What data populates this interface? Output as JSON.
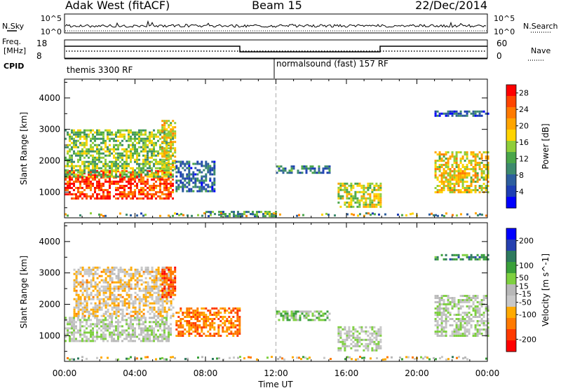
{
  "header": {
    "station": "Adak West (fitACF)",
    "beam": "Beam 15",
    "date": "22/Dec/2014"
  },
  "noise_panel": {
    "left_label": "N.Sky",
    "right_label": "N.Search",
    "ticks": [
      "10^5",
      "10^0"
    ],
    "right_ticks": [
      "10^5",
      "10^0"
    ]
  },
  "freq_panel": {
    "left_label_line1": "Freq.",
    "left_label_line2": "[MHz]",
    "left_ticks": [
      "18",
      "8"
    ],
    "right_label": "Nave",
    "right_ticks": [
      "60",
      "0"
    ]
  },
  "cpid_panel": {
    "label": "CPID",
    "segments": [
      {
        "text": "themis 3300 RF",
        "start_hour": 0
      },
      {
        "text": "normalsound (fast) 157 RF",
        "start_hour": 12
      }
    ]
  },
  "colors": {
    "power_scale": [
      "#0000ff",
      "#1e3fb4",
      "#2d5e9e",
      "#3d8a6e",
      "#4aa64a",
      "#8fce3a",
      "#ffd400",
      "#ffa500",
      "#ff7a00",
      "#ff4500",
      "#ff0000"
    ],
    "velocity_scale": [
      "#ff0000",
      "#ff3a00",
      "#ff7a00",
      "#ffaa00",
      "#c8c8c8",
      "#b8b8b8",
      "#7ed040",
      "#3aa03a",
      "#2e7a5e",
      "#2540b0",
      "#0000ff"
    ],
    "ground_scatter": "#bebebe"
  },
  "chart_data": [
    {
      "type": "heatmap",
      "name": "power",
      "xlabel": "Time UT",
      "ylabel": "Slant Range [km]",
      "x_ticks": [
        "00:00",
        "04:00",
        "08:00",
        "12:00",
        "16:00",
        "20:00",
        "00:00"
      ],
      "xlim_hours": [
        0,
        24
      ],
      "y_ticks": [
        1000,
        2000,
        3000,
        4000
      ],
      "ylim_km": [
        180,
        4600
      ],
      "colorbar": {
        "label": "Power [dB]",
        "ticks": [
          4,
          8,
          12,
          16,
          20,
          24,
          28
        ],
        "range": [
          0,
          30
        ]
      },
      "regions": [
        {
          "t0": 0.0,
          "t1": 6.2,
          "r0": 800,
          "r1": 1700,
          "value": 26
        },
        {
          "t0": 0.0,
          "t1": 6.2,
          "r0": 1500,
          "r1": 3000,
          "value": 14
        },
        {
          "t0": 5.5,
          "t1": 6.3,
          "r0": 1700,
          "r1": 3300,
          "value": 18
        },
        {
          "t0": 6.3,
          "t1": 8.5,
          "r0": 1000,
          "r1": 2000,
          "value": 7
        },
        {
          "t0": 8.0,
          "t1": 12.0,
          "r0": 200,
          "r1": 400,
          "value": 10
        },
        {
          "t0": 12.0,
          "t1": 15.0,
          "r0": 1600,
          "r1": 1850,
          "value": 9
        },
        {
          "t0": 15.5,
          "t1": 18.0,
          "r0": 500,
          "r1": 1300,
          "value": 16
        },
        {
          "t0": 21.0,
          "t1": 24.0,
          "r0": 1000,
          "r1": 2300,
          "value": 18
        },
        {
          "t0": 21.0,
          "t1": 24.0,
          "r0": 3400,
          "r1": 3600,
          "value": 6
        }
      ]
    },
    {
      "type": "heatmap",
      "name": "velocity",
      "xlabel": "Time UT",
      "ylabel": "Slant Range [km]",
      "x_ticks": [
        "00:00",
        "04:00",
        "08:00",
        "12:00",
        "16:00",
        "20:00",
        "00:00"
      ],
      "xlim_hours": [
        0,
        24
      ],
      "y_ticks": [
        1000,
        2000,
        3000,
        4000
      ],
      "ylim_km": [
        180,
        4600
      ],
      "colorbar": {
        "label": "Velocity [m s^-1]",
        "ticks": [
          200,
          100,
          50,
          15,
          -15,
          -50,
          -100,
          -200
        ],
        "range": [
          -250,
          250
        ]
      },
      "regions": [
        {
          "t0": 0.0,
          "t1": 6.0,
          "r0": 800,
          "r1": 1600,
          "value": 0
        },
        {
          "t0": 0.5,
          "t1": 6.2,
          "r0": 1600,
          "r1": 3200,
          "value": -60
        },
        {
          "t0": 5.5,
          "t1": 6.3,
          "r0": 2200,
          "r1": 3200,
          "value": -180
        },
        {
          "t0": 6.3,
          "t1": 10.0,
          "r0": 1000,
          "r1": 1900,
          "value": -130
        },
        {
          "t0": 12.0,
          "t1": 15.0,
          "r0": 1500,
          "r1": 1800,
          "value": 40
        },
        {
          "t0": 15.5,
          "t1": 18.0,
          "r0": 500,
          "r1": 1300,
          "value": 0
        },
        {
          "t0": 21.0,
          "t1": 24.0,
          "r0": 1000,
          "r1": 2300,
          "value": 0
        },
        {
          "t0": 21.0,
          "t1": 24.0,
          "r0": 3400,
          "r1": 3600,
          "value": 120
        }
      ]
    }
  ]
}
